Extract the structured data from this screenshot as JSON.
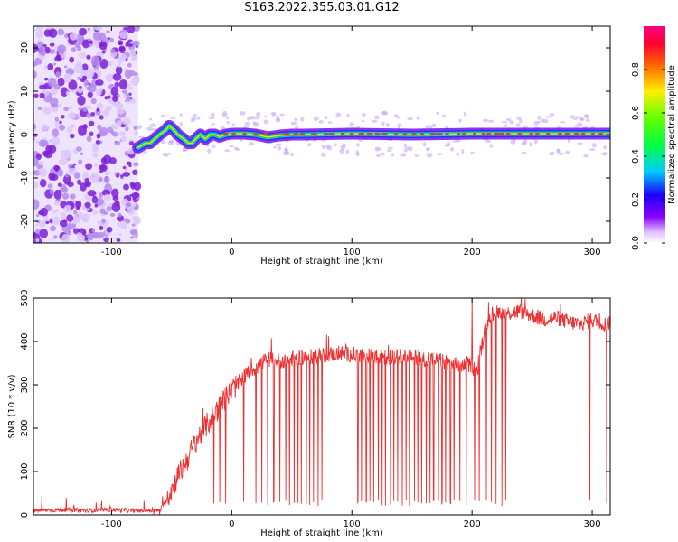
{
  "title": "S163.2022.355.03.01.G12",
  "colors": {
    "snr_line": "#f03030",
    "scatter_dots": "#8a2be2",
    "track_core": "#ff3030",
    "track_mid": "#22cc22",
    "track_outer": "#2233ff"
  },
  "colorbar": {
    "label": "Normalized spectral amplitude",
    "ticks": [
      "0.0",
      "0.2",
      "0.4",
      "0.6",
      "0.8"
    ],
    "tick_values": [
      0.0,
      0.2,
      0.4,
      0.6,
      0.8
    ],
    "range": [
      0,
      1
    ],
    "colormap": "gist_rainbow_r"
  },
  "chart_data": [
    {
      "type": "heatmap",
      "xlabel": "Height of straight line (km)",
      "ylabel": "Frequency (Hz)",
      "xlim": [
        -165,
        315
      ],
      "ylim": [
        -25,
        25
      ],
      "xticks": [
        -100,
        0,
        100,
        200,
        300
      ],
      "xtick_labels": [
        "-100",
        "0",
        "100",
        "200",
        "300"
      ],
      "yticks": [
        -20,
        -10,
        0,
        10,
        20
      ],
      "ytick_labels": [
        "-20",
        "-10",
        "0",
        "10",
        "20"
      ],
      "noise_region_x": [
        -165,
        -78
      ],
      "track": {
        "x": [
          -78,
          -72,
          -68,
          -64,
          -60,
          -55,
          -52,
          -48,
          -45,
          -40,
          -36,
          -33,
          -30,
          -26,
          -22,
          -18,
          -14,
          -10,
          -5,
          0,
          10,
          20,
          30,
          40,
          50,
          60,
          100,
          150,
          200,
          250,
          315
        ],
        "y": [
          -3,
          -2,
          -2,
          -1,
          0,
          1,
          2,
          1,
          0,
          -1,
          -2,
          -2,
          -1,
          0,
          -1,
          0,
          0,
          -0.5,
          0,
          0.2,
          0.2,
          0,
          -0.6,
          -0.2,
          0,
          0,
          0.2,
          0,
          0.2,
          0.2,
          0.2
        ]
      },
      "grid": false
    },
    {
      "type": "line",
      "xlabel": "Height of straight line (km)",
      "ylabel": "SNR (10 * v/v)",
      "xlim": [
        -165,
        315
      ],
      "ylim": [
        0,
        500
      ],
      "xticks": [
        -100,
        0,
        100,
        200,
        300
      ],
      "xtick_labels": [
        "-100",
        "0",
        "100",
        "200",
        "300"
      ],
      "yticks": [
        0,
        100,
        200,
        300,
        400,
        500
      ],
      "ytick_labels": [
        "0",
        "100",
        "200",
        "300",
        "400",
        "500"
      ],
      "series": [
        {
          "x": [
            -165,
            -140,
            -120,
            -100,
            -80,
            -60,
            -55,
            -50,
            -45,
            -40,
            -35,
            -30,
            -25,
            -20,
            -15,
            -10,
            -5,
            0,
            5,
            10,
            15,
            20,
            25,
            30,
            40,
            50,
            60,
            70,
            80,
            90,
            100,
            110,
            120,
            130,
            140,
            150,
            160,
            170,
            180,
            190,
            200,
            205,
            210,
            215,
            220,
            230,
            240,
            250,
            260,
            270,
            280,
            290,
            300,
            310,
            315
          ],
          "y": [
            10,
            12,
            10,
            12,
            10,
            10,
            30,
            60,
            90,
            110,
            140,
            170,
            190,
            210,
            230,
            250,
            270,
            290,
            300,
            320,
            330,
            340,
            350,
            360,
            355,
            360,
            365,
            365,
            370,
            372,
            370,
            368,
            365,
            362,
            365,
            365,
            360,
            358,
            350,
            345,
            345,
            330,
            420,
            460,
            470,
            465,
            470,
            460,
            450,
            455,
            445,
            440,
            450,
            440,
            440
          ]
        }
      ],
      "dropouts_x": [
        -15,
        -10,
        -5,
        10,
        20,
        25,
        30,
        35,
        40,
        45,
        48,
        52,
        55,
        58,
        62,
        65,
        68,
        72,
        75,
        105,
        108,
        112,
        115,
        118,
        122,
        125,
        128,
        132,
        135,
        138,
        142,
        145,
        148,
        152,
        155,
        158,
        162,
        165,
        168,
        172,
        175,
        178,
        182,
        185,
        190,
        195,
        202,
        206,
        212,
        216,
        220,
        225,
        228,
        298,
        312
      ],
      "grid": false
    }
  ]
}
